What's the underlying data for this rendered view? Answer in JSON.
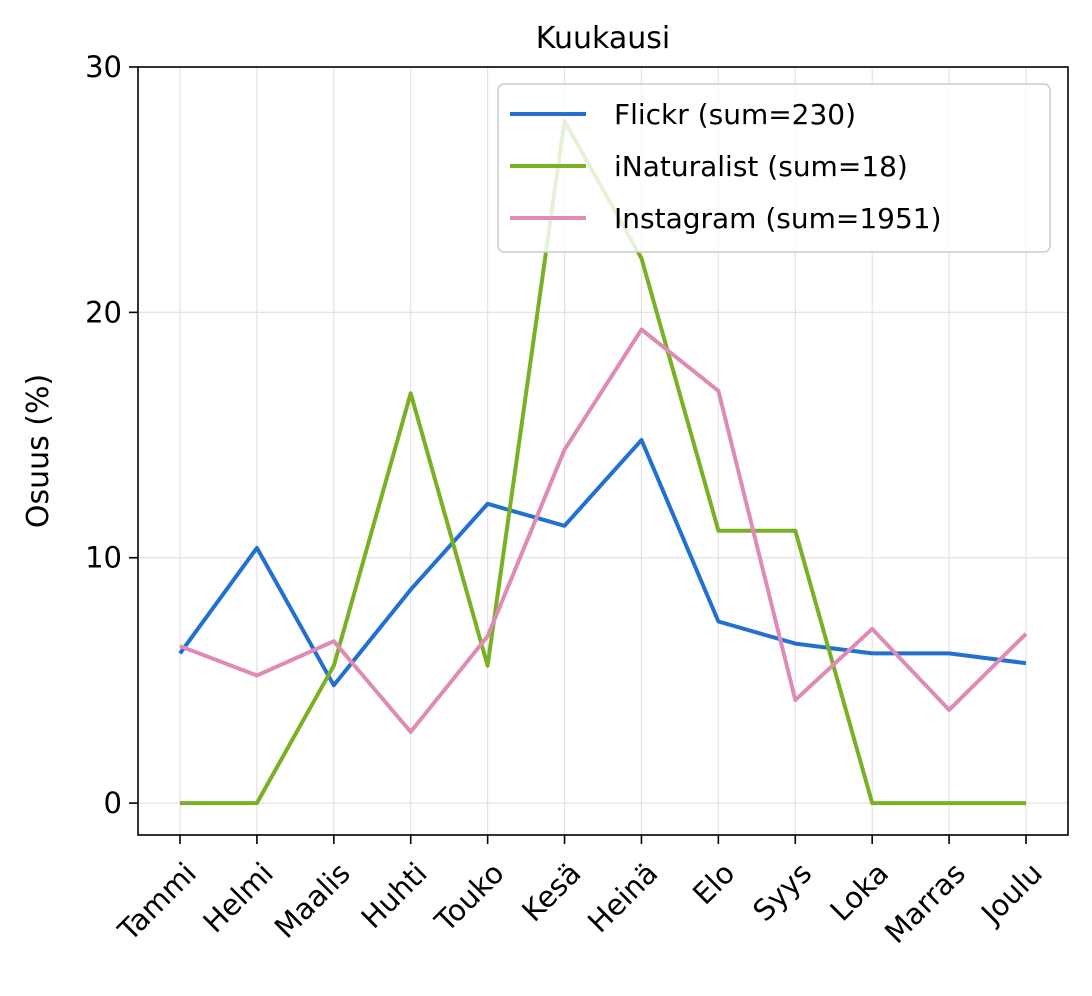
{
  "chart_data": {
    "type": "line",
    "title": "Kuukausi",
    "xlabel": "",
    "ylabel": "Osuus (%)",
    "categories": [
      "Tammi",
      "Helmi",
      "Maalis",
      "Huhti",
      "Touko",
      "Kesä",
      "Heinä",
      "Elo",
      "Syys",
      "Loka",
      "Marras",
      "Joulu"
    ],
    "ylim": [
      -1.3,
      30
    ],
    "yticks": [
      0,
      10,
      20,
      30
    ],
    "grid": true,
    "legend_position": "top-right",
    "series": [
      {
        "name": "Flickr (sum=230)",
        "color": "#2270d0",
        "values": [
          6.1,
          10.4,
          4.8,
          8.7,
          12.2,
          11.3,
          14.8,
          7.4,
          6.5,
          6.1,
          6.1,
          5.7
        ]
      },
      {
        "name": "iNaturalist (sum=18)",
        "color": "#7ab024",
        "values": [
          0,
          0,
          5.6,
          16.7,
          5.6,
          27.8,
          22.2,
          11.1,
          11.1,
          0,
          0,
          0
        ]
      },
      {
        "name": "Instagram (sum=1951)",
        "color": "#de8bb6",
        "values": [
          6.4,
          5.2,
          6.6,
          2.9,
          6.8,
          14.4,
          19.3,
          16.8,
          4.2,
          7.1,
          3.8,
          6.9
        ]
      }
    ]
  }
}
